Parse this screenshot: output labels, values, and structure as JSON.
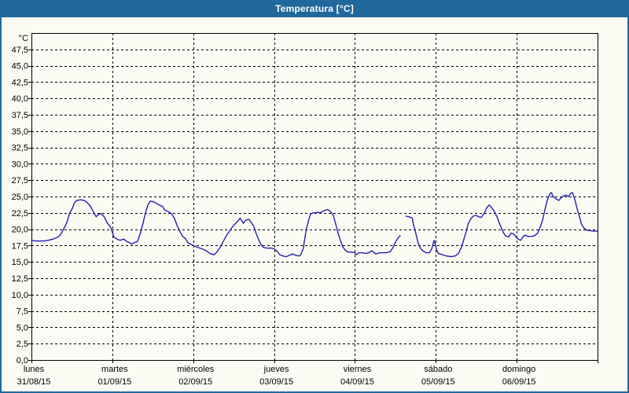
{
  "window": {
    "title": "Temperatura [°C]"
  },
  "colors": {
    "titlebar_bg": "#20689c",
    "frame": "#20689c",
    "content_bg": "#fbfbf4",
    "plot_border": "#000000",
    "gridline": "#000000",
    "text": "#000000",
    "line": "#2020b2"
  },
  "chart_data": {
    "type": "line",
    "title": "Temperatura [°C]",
    "ylabel": "°C",
    "y_axis": {
      "unit_label": "°C",
      "min": 0,
      "max": 50,
      "tick_step": 2.5,
      "tick_labels": [
        "0,0",
        "2,5",
        "5,0",
        "7,5",
        "10,0",
        "12,5",
        "15,0",
        "17,5",
        "20,0",
        "22,5",
        "25,0",
        "27,5",
        "30,0",
        "32,5",
        "35,0",
        "37,5",
        "40,0",
        "42,5",
        "45,0",
        "47,5"
      ],
      "decimal_separator": ","
    },
    "x_axis": {
      "range_days": [
        0,
        7
      ],
      "days": [
        {
          "name": "lunes",
          "date": "31/08/15"
        },
        {
          "name": "martes",
          "date": "01/09/15"
        },
        {
          "name": "miércoles",
          "date": "02/09/15"
        },
        {
          "name": "jueves",
          "date": "03/09/15"
        },
        {
          "name": "viernes",
          "date": "04/09/15"
        },
        {
          "name": "sábado",
          "date": "05/09/15"
        },
        {
          "name": "domingo",
          "date": "06/09/15"
        }
      ]
    },
    "grid": {
      "horizontal": true,
      "vertical": true,
      "style": "dashed"
    },
    "legend": "none",
    "series": [
      {
        "name": "Temperatura",
        "color": "#2020b2",
        "unit": "°C",
        "segments": [
          [
            [
              0.0,
              18.3
            ],
            [
              0.05,
              18.2
            ],
            [
              0.15,
              18.2
            ],
            [
              0.21,
              18.3
            ],
            [
              0.27,
              18.5
            ],
            [
              0.34,
              18.9
            ],
            [
              0.37,
              19.4
            ],
            [
              0.41,
              20.3
            ],
            [
              0.44,
              21.1
            ],
            [
              0.47,
              22.4
            ],
            [
              0.51,
              23.3
            ],
            [
              0.53,
              24.0
            ],
            [
              0.56,
              24.4
            ],
            [
              0.61,
              24.5
            ],
            [
              0.65,
              24.4
            ],
            [
              0.68,
              24.2
            ],
            [
              0.73,
              23.5
            ],
            [
              0.76,
              22.8
            ],
            [
              0.8,
              21.9
            ],
            [
              0.83,
              22.3
            ],
            [
              0.86,
              22.4
            ],
            [
              0.9,
              21.9
            ],
            [
              0.94,
              20.9
            ],
            [
              0.98,
              20.3
            ],
            [
              1.02,
              18.8
            ],
            [
              1.07,
              18.4
            ],
            [
              1.1,
              18.3
            ],
            [
              1.14,
              18.5
            ],
            [
              1.17,
              18.2
            ],
            [
              1.22,
              17.9
            ],
            [
              1.24,
              17.7
            ],
            [
              1.28,
              18.0
            ],
            [
              1.31,
              18.1
            ],
            [
              1.34,
              19.1
            ],
            [
              1.38,
              20.9
            ],
            [
              1.41,
              22.5
            ],
            [
              1.44,
              23.7
            ],
            [
              1.47,
              24.3
            ],
            [
              1.51,
              24.2
            ],
            [
              1.54,
              24.0
            ],
            [
              1.58,
              23.7
            ],
            [
              1.62,
              23.5
            ],
            [
              1.65,
              22.9
            ],
            [
              1.69,
              22.7
            ],
            [
              1.73,
              22.4
            ],
            [
              1.77,
              21.6
            ],
            [
              1.8,
              20.6
            ],
            [
              1.83,
              19.8
            ],
            [
              1.87,
              18.9
            ],
            [
              1.9,
              18.6
            ],
            [
              1.94,
              17.9
            ],
            [
              1.99,
              17.6
            ],
            [
              2.04,
              17.3
            ],
            [
              2.11,
              17.0
            ],
            [
              2.16,
              16.7
            ],
            [
              2.22,
              16.2
            ],
            [
              2.26,
              16.1
            ],
            [
              2.3,
              16.6
            ],
            [
              2.34,
              17.4
            ],
            [
              2.38,
              18.3
            ],
            [
              2.41,
              19.0
            ],
            [
              2.46,
              19.9
            ],
            [
              2.5,
              20.6
            ],
            [
              2.55,
              21.2
            ],
            [
              2.58,
              21.7
            ],
            [
              2.62,
              20.9
            ],
            [
              2.65,
              21.4
            ],
            [
              2.69,
              21.5
            ],
            [
              2.72,
              21.0
            ],
            [
              2.75,
              20.4
            ],
            [
              2.78,
              19.3
            ],
            [
              2.81,
              18.4
            ],
            [
              2.84,
              17.6
            ],
            [
              2.87,
              17.2
            ],
            [
              2.92,
              17.1
            ],
            [
              2.97,
              17.1
            ],
            [
              3.0,
              17.0
            ],
            [
              3.04,
              16.6
            ],
            [
              3.07,
              16.1
            ],
            [
              3.11,
              15.9
            ],
            [
              3.15,
              15.8
            ],
            [
              3.19,
              16.0
            ],
            [
              3.23,
              16.2
            ],
            [
              3.27,
              16.0
            ],
            [
              3.31,
              15.9
            ],
            [
              3.33,
              16.1
            ],
            [
              3.36,
              17.0
            ],
            [
              3.38,
              18.6
            ],
            [
              3.4,
              20.0
            ],
            [
              3.43,
              21.5
            ],
            [
              3.45,
              22.3
            ],
            [
              3.48,
              22.5
            ],
            [
              3.51,
              22.5
            ],
            [
              3.54,
              22.6
            ],
            [
              3.57,
              22.5
            ],
            [
              3.6,
              22.7
            ],
            [
              3.63,
              22.9
            ],
            [
              3.66,
              23.0
            ],
            [
              3.68,
              22.9
            ],
            [
              3.71,
              22.5
            ],
            [
              3.73,
              22.2
            ],
            [
              3.76,
              20.9
            ],
            [
              3.79,
              19.5
            ],
            [
              3.82,
              18.3
            ],
            [
              3.85,
              17.3
            ],
            [
              3.88,
              16.8
            ],
            [
              3.91,
              16.5
            ],
            [
              3.96,
              16.5
            ],
            [
              4.0,
              16.4
            ],
            [
              4.02,
              16.1
            ],
            [
              4.05,
              16.4
            ],
            [
              4.09,
              16.4
            ],
            [
              4.13,
              16.3
            ],
            [
              4.17,
              16.4
            ],
            [
              4.21,
              16.7
            ],
            [
              4.26,
              16.2
            ],
            [
              4.3,
              16.4
            ],
            [
              4.35,
              16.4
            ],
            [
              4.39,
              16.4
            ],
            [
              4.44,
              16.6
            ],
            [
              4.47,
              17.2
            ],
            [
              4.5,
              18.0
            ],
            [
              4.53,
              18.6
            ],
            [
              4.56,
              19.0
            ]
          ],
          [
            [
              4.63,
              22.0
            ],
            [
              4.67,
              21.9
            ],
            [
              4.71,
              21.7
            ],
            [
              4.72,
              20.9
            ],
            [
              4.75,
              19.5
            ],
            [
              4.78,
              17.9
            ],
            [
              4.81,
              17.1
            ],
            [
              4.84,
              16.7
            ],
            [
              4.88,
              16.4
            ],
            [
              4.92,
              16.4
            ],
            [
              4.95,
              17.0
            ],
            [
              4.98,
              18.3
            ],
            [
              5.01,
              16.9
            ],
            [
              5.03,
              16.3
            ],
            [
              5.08,
              16.1
            ],
            [
              5.13,
              15.9
            ],
            [
              5.19,
              15.8
            ],
            [
              5.24,
              15.9
            ],
            [
              5.28,
              16.3
            ],
            [
              5.32,
              17.3
            ],
            [
              5.35,
              18.6
            ],
            [
              5.38,
              19.8
            ],
            [
              5.4,
              20.8
            ],
            [
              5.43,
              21.5
            ],
            [
              5.46,
              22.0
            ],
            [
              5.5,
              22.1
            ],
            [
              5.53,
              21.9
            ],
            [
              5.56,
              21.8
            ],
            [
              5.6,
              22.4
            ],
            [
              5.63,
              23.3
            ],
            [
              5.66,
              23.7
            ],
            [
              5.69,
              23.3
            ],
            [
              5.72,
              22.8
            ],
            [
              5.76,
              21.8
            ],
            [
              5.79,
              20.8
            ],
            [
              5.83,
              19.6
            ],
            [
              5.86,
              19.0
            ],
            [
              5.9,
              18.8
            ],
            [
              5.93,
              19.4
            ],
            [
              5.96,
              19.3
            ],
            [
              6.0,
              18.7
            ],
            [
              6.03,
              18.4
            ],
            [
              6.05,
              18.3
            ],
            [
              6.08,
              18.9
            ],
            [
              6.1,
              19.1
            ],
            [
              6.14,
              18.9
            ],
            [
              6.18,
              18.9
            ],
            [
              6.22,
              19.0
            ],
            [
              6.26,
              19.4
            ],
            [
              6.29,
              20.3
            ],
            [
              6.32,
              21.4
            ],
            [
              6.35,
              23.0
            ],
            [
              6.38,
              24.5
            ],
            [
              6.41,
              25.4
            ],
            [
              6.43,
              25.6
            ],
            [
              6.45,
              25.0
            ],
            [
              6.48,
              24.7
            ],
            [
              6.52,
              24.4
            ],
            [
              6.55,
              24.8
            ],
            [
              6.58,
              25.1
            ],
            [
              6.61,
              25.2
            ],
            [
              6.64,
              25.0
            ],
            [
              6.67,
              25.5
            ],
            [
              6.69,
              25.6
            ],
            [
              6.72,
              24.5
            ],
            [
              6.75,
              23.0
            ],
            [
              6.78,
              21.8
            ],
            [
              6.8,
              20.8
            ],
            [
              6.83,
              20.2
            ],
            [
              6.86,
              19.9
            ],
            [
              6.9,
              19.8
            ],
            [
              6.95,
              19.7
            ],
            [
              7.0,
              19.7
            ]
          ]
        ]
      }
    ]
  }
}
